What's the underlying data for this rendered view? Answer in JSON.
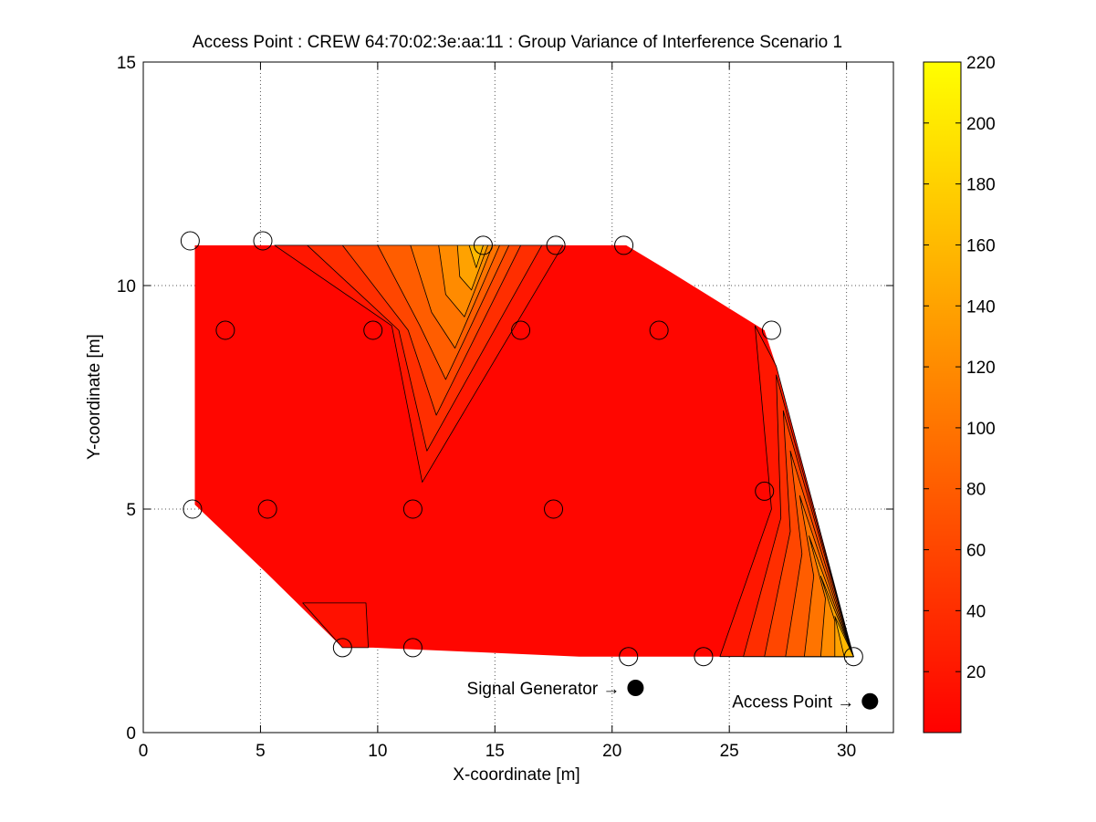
{
  "chart_data": {
    "type": "contour",
    "title": "Access Point : CREW 64:70:02:3e:aa:11 : Group Variance of Interference Scenario 1",
    "xlabel": "X-coordinate [m]",
    "ylabel": "Y-coordinate [m]",
    "xlim": [
      0,
      32
    ],
    "ylim": [
      0,
      15
    ],
    "x_ticks": [
      0,
      5,
      10,
      15,
      20,
      25,
      30
    ],
    "y_ticks": [
      0,
      5,
      10,
      15
    ],
    "grid": true,
    "colormap": "autumn",
    "colormap_colors": [
      "#ff0000",
      "#ffff00"
    ],
    "colorbar": {
      "range": [
        0,
        220
      ],
      "ticks": [
        20,
        40,
        60,
        80,
        100,
        120,
        140,
        160,
        180,
        200,
        220
      ],
      "position": "right"
    },
    "region_outline": [
      [
        2.2,
        10.9
      ],
      [
        20.6,
        10.9
      ],
      [
        22.5,
        10.3
      ],
      [
        26.5,
        9.0
      ],
      [
        27.0,
        8.2
      ],
      [
        30.3,
        1.7
      ],
      [
        18.6,
        1.7
      ],
      [
        14.2,
        1.8
      ],
      [
        9.8,
        1.9
      ],
      [
        8.5,
        1.9
      ],
      [
        5.2,
        3.6
      ],
      [
        2.2,
        5.1
      ]
    ],
    "contour_levels": [
      {
        "value": 5,
        "polygon": [
          [
            2.2,
            10.9
          ],
          [
            20.6,
            10.9
          ],
          [
            22.5,
            10.3
          ],
          [
            26.5,
            9.0
          ],
          [
            27.0,
            8.2
          ],
          [
            30.3,
            1.7
          ],
          [
            18.6,
            1.7
          ],
          [
            14.2,
            1.8
          ],
          [
            9.8,
            1.9
          ],
          [
            8.5,
            1.9
          ],
          [
            5.2,
            3.6
          ],
          [
            2.2,
            5.1
          ]
        ]
      },
      {
        "value": 15,
        "polygon": [
          [
            6.8,
            2.9
          ],
          [
            9.5,
            2.9
          ],
          [
            9.6,
            1.9
          ],
          [
            8.5,
            1.9
          ]
        ]
      },
      {
        "value": 20,
        "polygon": [
          [
            5.6,
            10.9
          ],
          [
            17.9,
            10.9
          ],
          [
            11.9,
            5.6
          ],
          [
            10.6,
            9.1
          ]
        ]
      },
      {
        "value": 40,
        "polygon": [
          [
            7.0,
            10.9
          ],
          [
            17.0,
            10.9
          ],
          [
            12.1,
            6.3
          ],
          [
            10.9,
            9.0
          ]
        ]
      },
      {
        "value": 60,
        "polygon": [
          [
            8.5,
            10.9
          ],
          [
            16.1,
            10.9
          ],
          [
            12.5,
            7.1
          ],
          [
            11.3,
            9.0
          ]
        ]
      },
      {
        "value": 80,
        "polygon": [
          [
            10.0,
            10.9
          ],
          [
            15.6,
            10.9
          ],
          [
            12.9,
            7.9
          ],
          [
            11.8,
            9.1
          ]
        ]
      },
      {
        "value": 100,
        "polygon": [
          [
            11.4,
            10.9
          ],
          [
            15.2,
            10.9
          ],
          [
            13.3,
            8.6
          ],
          [
            12.3,
            9.4
          ]
        ]
      },
      {
        "value": 120,
        "polygon": [
          [
            12.6,
            10.9
          ],
          [
            14.9,
            10.9
          ],
          [
            13.7,
            9.3
          ],
          [
            12.9,
            9.8
          ]
        ]
      },
      {
        "value": 140,
        "polygon": [
          [
            13.4,
            10.9
          ],
          [
            14.7,
            10.9
          ],
          [
            14.0,
            9.9
          ],
          [
            13.5,
            10.2
          ]
        ]
      },
      {
        "value": 160,
        "polygon": [
          [
            13.9,
            10.9
          ],
          [
            14.5,
            10.9
          ],
          [
            14.2,
            10.4
          ]
        ]
      },
      {
        "value": 20,
        "polygon": [
          [
            26.1,
            9.1
          ],
          [
            27.0,
            8.2
          ],
          [
            30.3,
            1.7
          ],
          [
            24.6,
            1.7
          ],
          [
            26.8,
            5.0
          ]
        ]
      },
      {
        "value": 40,
        "polygon": [
          [
            27.0,
            8.0
          ],
          [
            30.3,
            1.7
          ],
          [
            25.6,
            1.7
          ],
          [
            27.2,
            4.8
          ]
        ]
      },
      {
        "value": 60,
        "polygon": [
          [
            27.3,
            7.2
          ],
          [
            30.3,
            1.7
          ],
          [
            26.5,
            1.7
          ],
          [
            27.6,
            4.5
          ]
        ]
      },
      {
        "value": 80,
        "polygon": [
          [
            27.6,
            6.3
          ],
          [
            30.3,
            1.7
          ],
          [
            27.4,
            1.7
          ],
          [
            28.1,
            4.0
          ]
        ]
      },
      {
        "value": 100,
        "polygon": [
          [
            28.0,
            5.3
          ],
          [
            30.3,
            1.7
          ],
          [
            28.2,
            1.7
          ],
          [
            28.6,
            3.5
          ]
        ]
      },
      {
        "value": 120,
        "polygon": [
          [
            28.4,
            4.4
          ],
          [
            30.3,
            1.7
          ],
          [
            28.9,
            1.7
          ],
          [
            29.1,
            3.0
          ]
        ]
      },
      {
        "value": 140,
        "polygon": [
          [
            28.9,
            3.5
          ],
          [
            30.3,
            1.7
          ],
          [
            29.5,
            1.7
          ],
          [
            29.5,
            2.5
          ]
        ]
      },
      {
        "value": 160,
        "polygon": [
          [
            29.5,
            2.6
          ],
          [
            30.3,
            1.7
          ],
          [
            29.9,
            1.7
          ]
        ]
      }
    ],
    "measurement_points": [
      [
        2.0,
        11.0
      ],
      [
        5.1,
        11.0
      ],
      [
        14.5,
        10.9
      ],
      [
        17.6,
        10.9
      ],
      [
        20.5,
        10.9
      ],
      [
        3.5,
        9.0
      ],
      [
        9.8,
        9.0
      ],
      [
        16.1,
        9.0
      ],
      [
        22.0,
        9.0
      ],
      [
        26.8,
        9.0
      ],
      [
        2.1,
        5.0
      ],
      [
        5.3,
        5.0
      ],
      [
        11.5,
        5.0
      ],
      [
        17.5,
        5.0
      ],
      [
        26.5,
        5.4
      ],
      [
        8.5,
        1.9
      ],
      [
        11.5,
        1.9
      ],
      [
        20.7,
        1.7
      ],
      [
        23.9,
        1.7
      ],
      [
        30.3,
        1.7
      ]
    ],
    "markers": [
      {
        "label": "Signal Generator →",
        "x": 21.0,
        "y": 1.0
      },
      {
        "label": "Access Point →",
        "x": 31.0,
        "y": 0.7
      }
    ]
  }
}
